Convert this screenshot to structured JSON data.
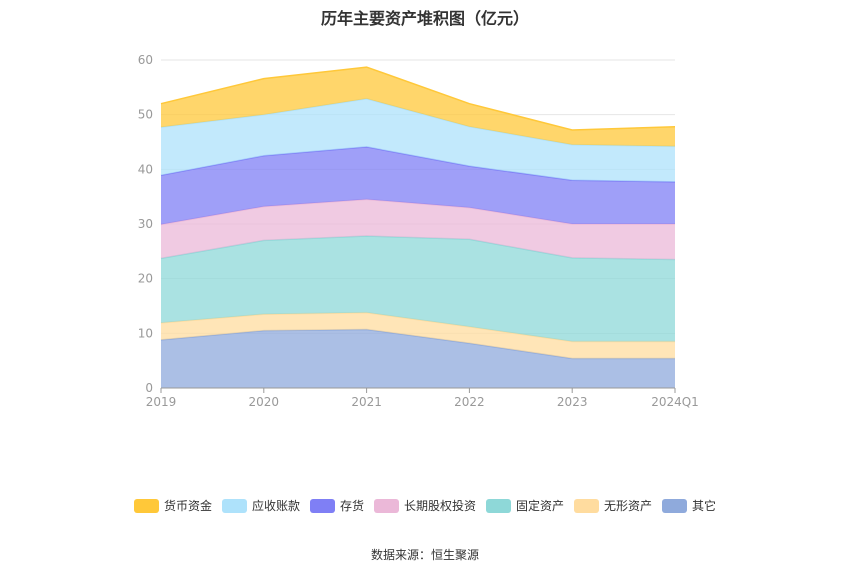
{
  "chart_data": {
    "type": "area",
    "stacked": true,
    "title": "历年主要资产堆积图（亿元）",
    "categories": [
      "2019",
      "2020",
      "2021",
      "2022",
      "2023",
      "2024Q1"
    ],
    "ylim": [
      0,
      60
    ],
    "yticks": [
      0,
      10,
      20,
      30,
      40,
      50,
      60
    ],
    "grid": true,
    "legend_position": "bottom",
    "series": [
      {
        "name": "其它",
        "color": "#8faadc",
        "values": [
          8.8,
          10.5,
          10.7,
          8.2,
          5.4,
          5.4
        ]
      },
      {
        "name": "无形资产",
        "color": "#ffdc9f",
        "values": [
          3.1,
          3.0,
          3.1,
          3.0,
          3.1,
          3.1
        ]
      },
      {
        "name": "固定资产",
        "color": "#8ed8d8",
        "values": [
          11.8,
          13.5,
          14.0,
          16.0,
          15.3,
          15.0
        ]
      },
      {
        "name": "长期股权投资",
        "color": "#ebb8d8",
        "values": [
          6.2,
          6.2,
          6.7,
          5.8,
          6.2,
          6.5
        ]
      },
      {
        "name": "存货",
        "color": "#7f7ff5",
        "values": [
          9.0,
          9.3,
          9.6,
          7.6,
          8.0,
          7.7
        ]
      },
      {
        "name": "应收账款",
        "color": "#aee2fb",
        "values": [
          8.8,
          7.5,
          8.8,
          7.2,
          6.5,
          6.5
        ]
      },
      {
        "name": "货币资金",
        "color": "#ffc839",
        "values": [
          4.3,
          6.6,
          5.8,
          4.2,
          2.7,
          3.6
        ]
      }
    ],
    "legend_order": [
      "货币资金",
      "应收账款",
      "存货",
      "长期股权投资",
      "固定资产",
      "无形资产",
      "其它"
    ]
  },
  "source_text": "数据来源：恒生聚源"
}
